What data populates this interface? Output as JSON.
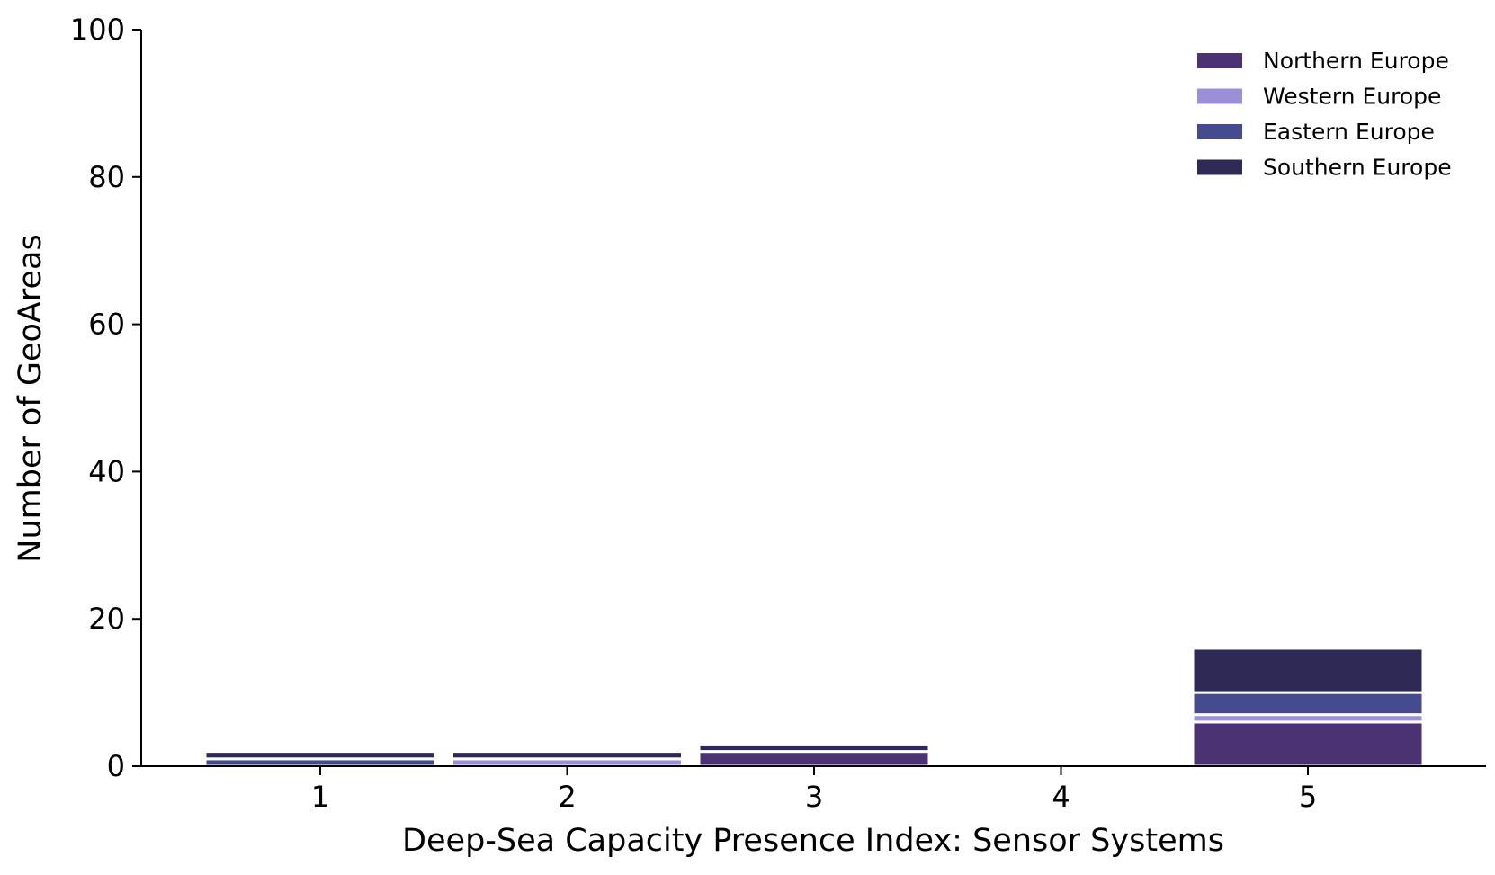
{
  "chart_data": {
    "type": "bar",
    "stacked": true,
    "title": "",
    "xlabel": "Deep-Sea Capacity Presence Index: Sensor Systems",
    "ylabel": "Number of GeoAreas",
    "categories": [
      "1",
      "2",
      "3",
      "4",
      "5"
    ],
    "ylim": [
      0,
      100
    ],
    "yticks": [
      "0",
      "20",
      "40",
      "60",
      "80",
      "100"
    ],
    "grid": false,
    "legend_position": "top-right",
    "series": [
      {
        "name": "Northern Europe",
        "color": "#4b3273",
        "values": [
          0,
          0,
          2,
          0,
          6
        ]
      },
      {
        "name": "Western Europe",
        "color": "#9b90d8",
        "values": [
          0,
          1,
          0,
          0,
          1
        ]
      },
      {
        "name": "Eastern Europe",
        "color": "#464a8e",
        "values": [
          1,
          0,
          0,
          0,
          3
        ]
      },
      {
        "name": "Southern Europe",
        "color": "#2f2a55",
        "values": [
          1,
          1,
          1,
          0,
          6
        ]
      }
    ]
  }
}
